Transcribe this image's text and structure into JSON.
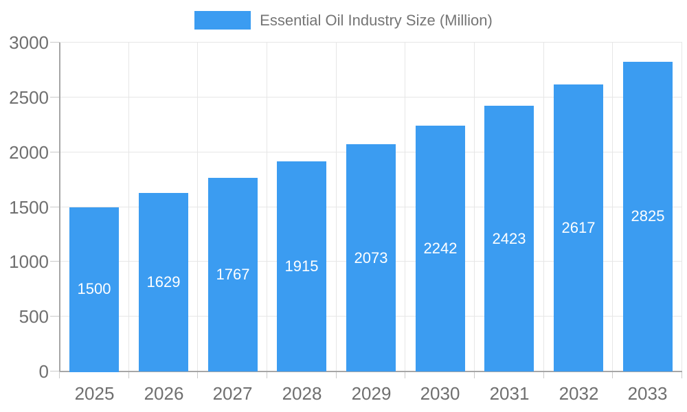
{
  "legend": {
    "label": "Essential Oil Industry Size (Million)"
  },
  "colors": {
    "bar": "#3B9CF1",
    "gridline": "#E6E6E6",
    "axis_line": "#A6A6A6",
    "tick": "#C9C9C9",
    "axis_text": "#6F6F6F",
    "legend_text": "#757575",
    "value_label_text": "#FFFFFF",
    "background": "#FFFFFF"
  },
  "chart_data": {
    "type": "bar",
    "title": "Essential Oil Industry Size (Million)",
    "categories": [
      "2025",
      "2026",
      "2027",
      "2028",
      "2029",
      "2030",
      "2031",
      "2032",
      "2033"
    ],
    "values": [
      1500,
      1629,
      1767,
      1915,
      2073,
      2242,
      2423,
      2617,
      2825
    ],
    "xlabel": "",
    "ylabel": "",
    "ylim": [
      0,
      3000
    ],
    "yticks": [
      0,
      500,
      1000,
      1500,
      2000,
      2500,
      3000
    ],
    "grid": true,
    "legend_position": "top",
    "value_labels": "inside-center"
  }
}
